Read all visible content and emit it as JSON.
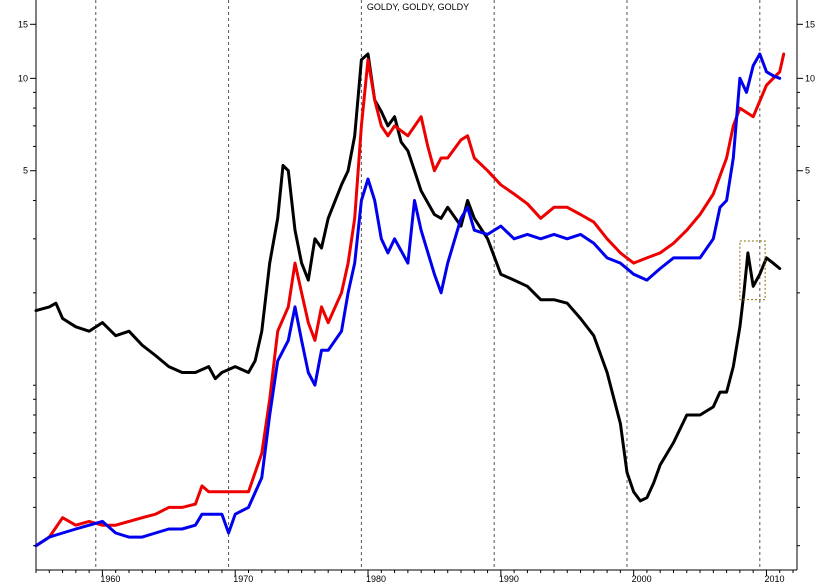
{
  "chart_data": {
    "type": "line",
    "title": "GOLDY, GOLDY, GOLDY",
    "y_scale": "log",
    "ylim": [
      0.25,
      18
    ],
    "xlim": [
      1955.0,
      2012.3
    ],
    "y_ticks": [
      5,
      10,
      15
    ],
    "y_tick_labels": [
      "5",
      "10",
      "15"
    ],
    "x_ticks": [
      1960,
      1970,
      1980,
      1990,
      2000,
      2010
    ],
    "x_tick_labels": [
      "1960",
      "1970",
      "1980",
      "1990",
      "2000",
      "2010"
    ],
    "vertical_gridlines": [
      1959.5,
      1969.5,
      1979.5,
      1989.5,
      1999.5,
      2009.5
    ],
    "grid": "dashed vertical lines",
    "legend": "none",
    "annotation_box": {
      "x": [
        2008.0,
        2009.9
      ],
      "y": [
        1.9,
        2.95
      ]
    },
    "series": [
      {
        "color": "#000000",
        "x": [
          1955.0,
          1956.0,
          1956.5,
          1957.0,
          1958.0,
          1959.0,
          1960.0,
          1961.0,
          1962.0,
          1963.0,
          1964.0,
          1965.0,
          1966.0,
          1967.0,
          1968.0,
          1968.5,
          1969.0,
          1970.0,
          1971.0,
          1971.5,
          1972.0,
          1972.6,
          1973.2,
          1973.6,
          1974.0,
          1974.5,
          1975.0,
          1975.5,
          1976.0,
          1976.5,
          1977.0,
          1978.0,
          1978.5,
          1979.0,
          1979.5,
          1980.0,
          1980.5,
          1981.0,
          1981.5,
          1982.0,
          1982.5,
          1983.0,
          1983.5,
          1984.0,
          1985.0,
          1985.5,
          1986.0,
          1987.0,
          1987.5,
          1988.0,
          1989.0,
          1990.0,
          1991.0,
          1992.0,
          1993.0,
          1994.0,
          1995.0,
          1996.0,
          1997.0,
          1998.0,
          1999.0,
          1999.5,
          2000.0,
          2000.5,
          2001.0,
          2001.5,
          2002.0,
          2003.0,
          2004.0,
          2005.0,
          2006.0,
          2006.5,
          2007.0,
          2007.5,
          2008.0,
          2008.3,
          2008.6,
          2009.0,
          2009.5,
          2010.0,
          2010.5,
          2011.0
        ],
        "y": [
          1.75,
          1.8,
          1.85,
          1.65,
          1.55,
          1.5,
          1.6,
          1.45,
          1.5,
          1.35,
          1.25,
          1.15,
          1.1,
          1.1,
          1.15,
          1.05,
          1.1,
          1.15,
          1.1,
          1.2,
          1.5,
          2.5,
          3.5,
          5.2,
          5.0,
          3.2,
          2.5,
          2.2,
          3.0,
          2.8,
          3.5,
          4.5,
          5.0,
          6.5,
          11.5,
          12.0,
          8.5,
          7.8,
          7.0,
          7.5,
          6.2,
          5.8,
          5.0,
          4.3,
          3.6,
          3.5,
          3.8,
          3.3,
          4.0,
          3.5,
          3.0,
          2.3,
          2.2,
          2.1,
          1.9,
          1.9,
          1.85,
          1.65,
          1.45,
          1.1,
          0.75,
          0.52,
          0.45,
          0.42,
          0.43,
          0.48,
          0.55,
          0.65,
          0.8,
          0.8,
          0.85,
          0.95,
          0.95,
          1.15,
          1.55,
          2.0,
          2.7,
          2.1,
          2.3,
          2.6,
          2.5,
          2.4
        ]
      },
      {
        "color": "#ee0000",
        "x": [
          1955.0,
          1956.0,
          1957.0,
          1958.0,
          1959.0,
          1960.0,
          1961.0,
          1962.0,
          1963.0,
          1964.0,
          1965.0,
          1966.0,
          1967.0,
          1967.5,
          1968.0,
          1969.0,
          1970.0,
          1971.0,
          1972.0,
          1972.6,
          1973.2,
          1974.0,
          1974.5,
          1975.0,
          1975.5,
          1976.0,
          1976.5,
          1977.0,
          1978.0,
          1978.5,
          1979.0,
          1979.5,
          1980.0,
          1980.5,
          1981.0,
          1981.5,
          1982.0,
          1983.0,
          1984.0,
          1984.5,
          1985.0,
          1985.5,
          1986.0,
          1987.0,
          1987.5,
          1988.0,
          1989.0,
          1990.0,
          1991.0,
          1992.0,
          1993.0,
          1994.0,
          1995.0,
          1996.0,
          1997.0,
          1998.0,
          1999.0,
          2000.0,
          2001.0,
          2002.0,
          2003.0,
          2004.0,
          2005.0,
          2006.0,
          2007.0,
          2007.5,
          2008.0,
          2009.0,
          2010.0,
          2011.0,
          2011.3
        ],
        "y": [
          0.3,
          0.32,
          0.37,
          0.35,
          0.36,
          0.35,
          0.35,
          0.36,
          0.37,
          0.38,
          0.4,
          0.4,
          0.41,
          0.47,
          0.45,
          0.45,
          0.45,
          0.45,
          0.6,
          0.9,
          1.5,
          1.8,
          2.5,
          2.0,
          1.6,
          1.4,
          1.8,
          1.6,
          2.0,
          2.5,
          3.5,
          7.0,
          11.5,
          8.5,
          7.0,
          6.5,
          7.0,
          6.5,
          7.5,
          6.0,
          5.0,
          5.5,
          5.5,
          6.3,
          6.5,
          5.5,
          5.0,
          4.5,
          4.2,
          3.9,
          3.5,
          3.8,
          3.8,
          3.6,
          3.4,
          3.0,
          2.7,
          2.5,
          2.6,
          2.7,
          2.9,
          3.2,
          3.6,
          4.2,
          5.5,
          7.0,
          8.0,
          7.5,
          9.5,
          10.5,
          12.0
        ]
      },
      {
        "color": "#0000ee",
        "x": [
          1955.0,
          1956.0,
          1957.0,
          1958.0,
          1959.0,
          1960.0,
          1961.0,
          1962.0,
          1963.0,
          1964.0,
          1965.0,
          1966.0,
          1967.0,
          1967.5,
          1968.0,
          1969.0,
          1969.5,
          1970.0,
          1971.0,
          1972.0,
          1972.6,
          1973.2,
          1974.0,
          1974.5,
          1975.0,
          1975.5,
          1976.0,
          1976.5,
          1977.0,
          1978.0,
          1978.5,
          1979.0,
          1979.5,
          1980.0,
          1980.5,
          1981.0,
          1981.5,
          1982.0,
          1983.0,
          1983.5,
          1984.0,
          1985.0,
          1985.5,
          1986.0,
          1987.0,
          1987.5,
          1988.0,
          1989.0,
          1990.0,
          1991.0,
          1992.0,
          1993.0,
          1994.0,
          1995.0,
          1996.0,
          1997.0,
          1998.0,
          1999.0,
          2000.0,
          2001.0,
          2002.0,
          2003.0,
          2004.0,
          2005.0,
          2006.0,
          2006.5,
          2007.0,
          2007.5,
          2008.0,
          2008.5,
          2009.0,
          2009.5,
          2010.0,
          2010.5,
          2011.0
        ],
        "y": [
          0.3,
          0.32,
          0.33,
          0.34,
          0.35,
          0.36,
          0.33,
          0.32,
          0.32,
          0.33,
          0.34,
          0.34,
          0.35,
          0.38,
          0.38,
          0.38,
          0.33,
          0.38,
          0.4,
          0.5,
          0.8,
          1.2,
          1.4,
          1.8,
          1.4,
          1.1,
          1.0,
          1.3,
          1.3,
          1.5,
          2.0,
          2.5,
          4.0,
          4.7,
          4.0,
          3.0,
          2.7,
          3.0,
          2.5,
          4.0,
          3.2,
          2.3,
          2.0,
          2.5,
          3.5,
          3.8,
          3.2,
          3.1,
          3.3,
          3.0,
          3.1,
          3.0,
          3.1,
          3.0,
          3.1,
          2.9,
          2.6,
          2.5,
          2.3,
          2.2,
          2.4,
          2.6,
          2.6,
          2.6,
          3.0,
          3.8,
          4.0,
          5.5,
          10.0,
          9.0,
          11.0,
          12.0,
          10.5,
          10.2,
          10.0
        ]
      }
    ]
  }
}
